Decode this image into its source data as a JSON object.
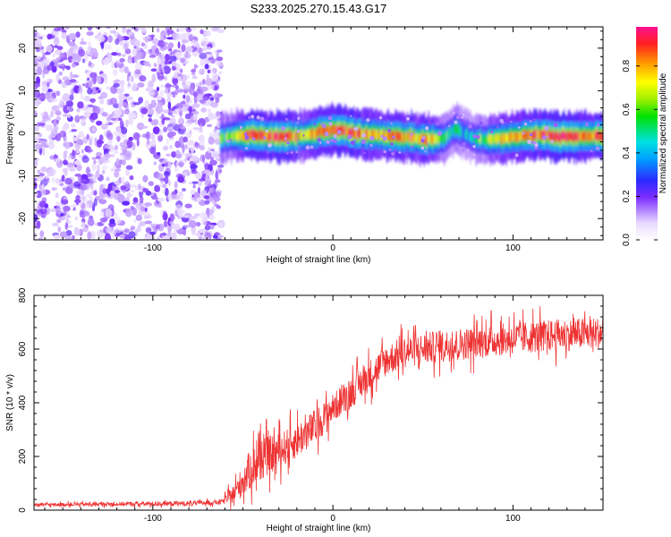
{
  "chart_data": [
    {
      "type": "heatmap",
      "title": "S233.2025.270.15.43.G17",
      "xlabel": "Height of straight line (km)",
      "ylabel": "Frequency (Hz)",
      "xlim": [
        -166,
        150
      ],
      "ylim": [
        -25,
        25
      ],
      "xticks": [
        -100,
        0,
        100
      ],
      "yticks": [
        -20,
        -10,
        0,
        10,
        20
      ],
      "colorbar": {
        "label": "Normalized spectral amplitude",
        "range": [
          0.0,
          0.98
        ],
        "ticks": [
          0.0,
          0.2,
          0.4,
          0.6,
          0.8
        ]
      },
      "noise_region_x": [
        -166,
        -62
      ],
      "ridge": {
        "x": [
          -62,
          -55,
          -45,
          -35,
          -25,
          -15,
          -5,
          5,
          15,
          25,
          35,
          45,
          55,
          62,
          68,
          72,
          78,
          85,
          95,
          105,
          115,
          125,
          135,
          150
        ],
        "frequency": [
          -1.2,
          -0.6,
          -0.4,
          -0.7,
          -0.8,
          -0.5,
          0.6,
          0.7,
          -0.1,
          -0.4,
          -0.8,
          -1.1,
          -1.5,
          -1.2,
          1.2,
          0.3,
          -1.1,
          -1.6,
          -1.2,
          -0.6,
          -0.2,
          -0.8,
          -0.8,
          -0.6
        ],
        "amplitude": [
          0.55,
          0.7,
          0.9,
          0.95,
          0.95,
          0.7,
          0.92,
          0.92,
          0.85,
          0.8,
          0.9,
          0.8,
          0.85,
          0.5,
          0.6,
          0.4,
          0.5,
          0.65,
          0.8,
          0.85,
          0.92,
          0.95,
          0.9,
          0.9
        ]
      }
    },
    {
      "type": "line",
      "title": "",
      "xlabel": "Height of straight line (km)",
      "ylabel": "SNR (10 * v/v)",
      "xlim": [
        -166,
        150
      ],
      "ylim": [
        0,
        800
      ],
      "xticks": [
        -100,
        0,
        100
      ],
      "yticks": [
        0,
        200,
        400,
        600,
        800
      ],
      "color": "#ee3333",
      "envelope": {
        "x": [
          -166,
          -80,
          -62,
          -55,
          -50,
          -45,
          -40,
          -30,
          -20,
          -10,
          0,
          10,
          20,
          30,
          40,
          60,
          80,
          100,
          120,
          150
        ],
        "mean": [
          20,
          25,
          30,
          60,
          110,
          160,
          190,
          220,
          260,
          310,
          380,
          440,
          500,
          560,
          590,
          610,
          625,
          640,
          650,
          660
        ],
        "spread": [
          10,
          15,
          15,
          60,
          100,
          130,
          130,
          110,
          110,
          110,
          90,
          100,
          100,
          100,
          100,
          100,
          100,
          100,
          100,
          100
        ]
      }
    }
  ]
}
